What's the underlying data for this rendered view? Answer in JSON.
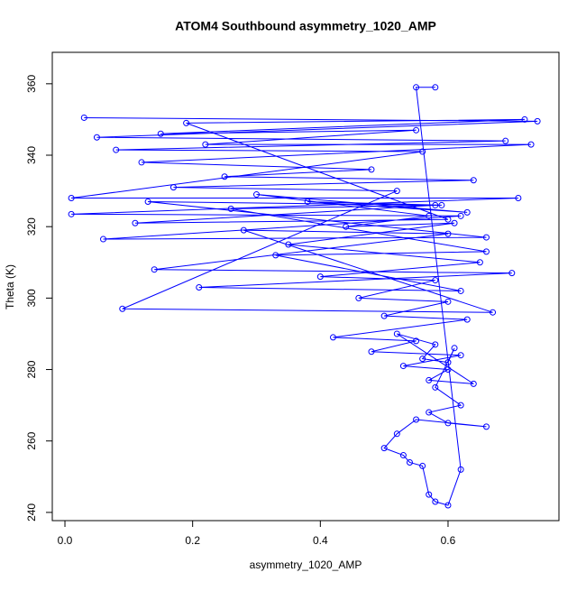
{
  "chart_data": {
    "type": "line",
    "title": "ATOM4 Southbound asymmetry_1020_AMP",
    "xlabel": "asymmetry_1020_AMP",
    "ylabel": "Theta (K)",
    "color": "#0000ff",
    "markers": true,
    "x": [
      0.03,
      0.74,
      0.05,
      0.69,
      0.08,
      0.56,
      0.01,
      0.71,
      0.01,
      0.62,
      0.06,
      0.66,
      0.13,
      0.58,
      0.11,
      0.6,
      0.19,
      0.72,
      0.15,
      0.55,
      0.22,
      0.73,
      0.12,
      0.48,
      0.25,
      0.64,
      0.17,
      0.52,
      0.09,
      0.67,
      0.28,
      0.6,
      0.14,
      0.7,
      0.21,
      0.62,
      0.33,
      0.66,
      0.26,
      0.59,
      0.38,
      0.63,
      0.3,
      0.57,
      0.44,
      0.61,
      0.35,
      0.65,
      0.4,
      0.58,
      0.46,
      0.6,
      0.5,
      0.63,
      0.42,
      0.55,
      0.48,
      0.62,
      0.53,
      0.6,
      0.57,
      0.64,
      0.52,
      0.58,
      0.56,
      0.6,
      0.61,
      0.58,
      0.62,
      0.57,
      0.6,
      0.66,
      0.55,
      0.52,
      0.5,
      0.53,
      0.54,
      0.56,
      0.57,
      0.58,
      0.6,
      0.62,
      0.55,
      0.58
    ],
    "y": [
      350.5,
      349.5,
      345,
      344,
      341.5,
      341,
      328,
      328,
      323.5,
      323,
      316.5,
      317,
      327,
      326,
      321,
      322,
      349,
      350,
      346,
      347,
      343,
      343,
      338,
      336,
      334,
      333,
      331,
      330,
      297,
      296,
      319,
      318,
      308,
      307,
      303,
      302,
      312,
      313,
      325,
      326,
      327,
      324,
      329,
      323,
      320,
      321,
      315,
      310,
      306,
      305,
      300,
      299,
      295,
      294,
      289,
      288,
      285,
      284,
      281,
      280,
      277,
      276,
      290,
      287,
      283,
      282,
      286,
      275,
      270,
      268,
      265,
      264,
      266,
      262,
      258,
      256,
      254,
      253,
      245,
      243,
      242,
      252,
      359,
      359
    ],
    "xlim": [
      -0.0198,
      0.7737
    ],
    "ylim": [
      237.7,
      368.8
    ],
    "xticks": [
      {
        "value": 0,
        "label": "0.0"
      },
      0.2,
      0.4,
      0.6
    ],
    "yticks": [
      240,
      260,
      280,
      300,
      320,
      340,
      360
    ]
  }
}
